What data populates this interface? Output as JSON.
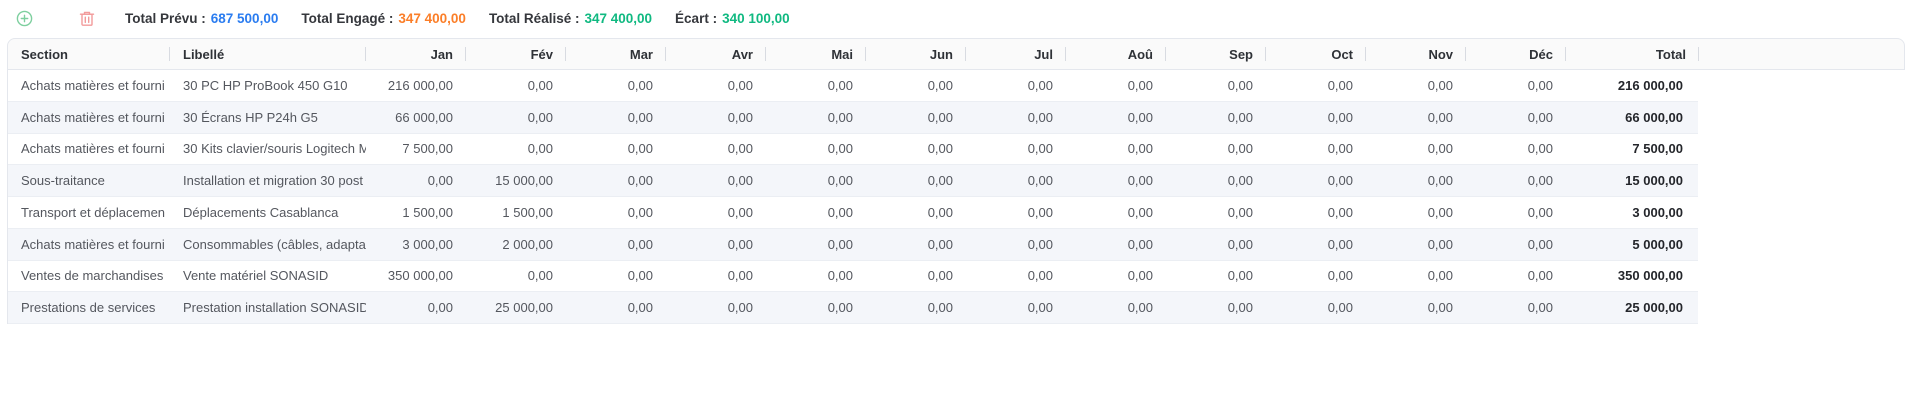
{
  "toolbar": {
    "add_icon": "plus-circle",
    "delete_icon": "trash",
    "icon_colors": {
      "add": "#7ecf9f",
      "delete": "#f29b9b"
    },
    "stats": [
      {
        "key": "total-prevu",
        "label": "Total Prévu :",
        "value": "687 500,00",
        "color": "#2a7cf0"
      },
      {
        "key": "total-engage",
        "label": "Total Engagé :",
        "value": "347 400,00",
        "color": "#fb7e28"
      },
      {
        "key": "total-realise",
        "label": "Total Réalisé :",
        "value": "347 400,00",
        "color": "#10b981"
      },
      {
        "key": "ecart",
        "label": "Écart :",
        "value": "340 100,00",
        "color": "#10b981"
      }
    ]
  },
  "table": {
    "columns": [
      "Section",
      "Libellé",
      "Jan",
      "Fév",
      "Mar",
      "Avr",
      "Mai",
      "Jun",
      "Jul",
      "Aoû",
      "Sep",
      "Oct",
      "Nov",
      "Déc",
      "Total"
    ],
    "rows": [
      {
        "section": "Achats matières et fourni",
        "libelle": "30 PC HP ProBook 450 G10",
        "months": [
          "216 000,00",
          "0,00",
          "0,00",
          "0,00",
          "0,00",
          "0,00",
          "0,00",
          "0,00",
          "0,00",
          "0,00",
          "0,00",
          "0,00"
        ],
        "total": "216 000,00"
      },
      {
        "section": "Achats matières et fourni",
        "libelle": "30 Écrans HP P24h G5",
        "months": [
          "66 000,00",
          "0,00",
          "0,00",
          "0,00",
          "0,00",
          "0,00",
          "0,00",
          "0,00",
          "0,00",
          "0,00",
          "0,00",
          "0,00"
        ],
        "total": "66 000,00"
      },
      {
        "section": "Achats matières et fourni",
        "libelle": "30 Kits clavier/souris Logitech M",
        "months": [
          "7 500,00",
          "0,00",
          "0,00",
          "0,00",
          "0,00",
          "0,00",
          "0,00",
          "0,00",
          "0,00",
          "0,00",
          "0,00",
          "0,00"
        ],
        "total": "7 500,00"
      },
      {
        "section": "Sous-traitance",
        "libelle": "Installation et migration 30 post",
        "months": [
          "0,00",
          "15 000,00",
          "0,00",
          "0,00",
          "0,00",
          "0,00",
          "0,00",
          "0,00",
          "0,00",
          "0,00",
          "0,00",
          "0,00"
        ],
        "total": "15 000,00"
      },
      {
        "section": "Transport et déplacemen",
        "libelle": "Déplacements Casablanca",
        "months": [
          "1 500,00",
          "1 500,00",
          "0,00",
          "0,00",
          "0,00",
          "0,00",
          "0,00",
          "0,00",
          "0,00",
          "0,00",
          "0,00",
          "0,00"
        ],
        "total": "3 000,00"
      },
      {
        "section": "Achats matières et fourni",
        "libelle": "Consommables (câbles, adaptat",
        "months": [
          "3 000,00",
          "2 000,00",
          "0,00",
          "0,00",
          "0,00",
          "0,00",
          "0,00",
          "0,00",
          "0,00",
          "0,00",
          "0,00",
          "0,00"
        ],
        "total": "5 000,00"
      },
      {
        "section": "Ventes de marchandises",
        "libelle": "Vente matériel SONASID",
        "months": [
          "350 000,00",
          "0,00",
          "0,00",
          "0,00",
          "0,00",
          "0,00",
          "0,00",
          "0,00",
          "0,00",
          "0,00",
          "0,00",
          "0,00"
        ],
        "total": "350 000,00"
      },
      {
        "section": "Prestations de services",
        "libelle": "Prestation installation SONASID",
        "months": [
          "0,00",
          "25 000,00",
          "0,00",
          "0,00",
          "0,00",
          "0,00",
          "0,00",
          "0,00",
          "0,00",
          "0,00",
          "0,00",
          "0,00"
        ],
        "total": "25 000,00"
      }
    ]
  }
}
